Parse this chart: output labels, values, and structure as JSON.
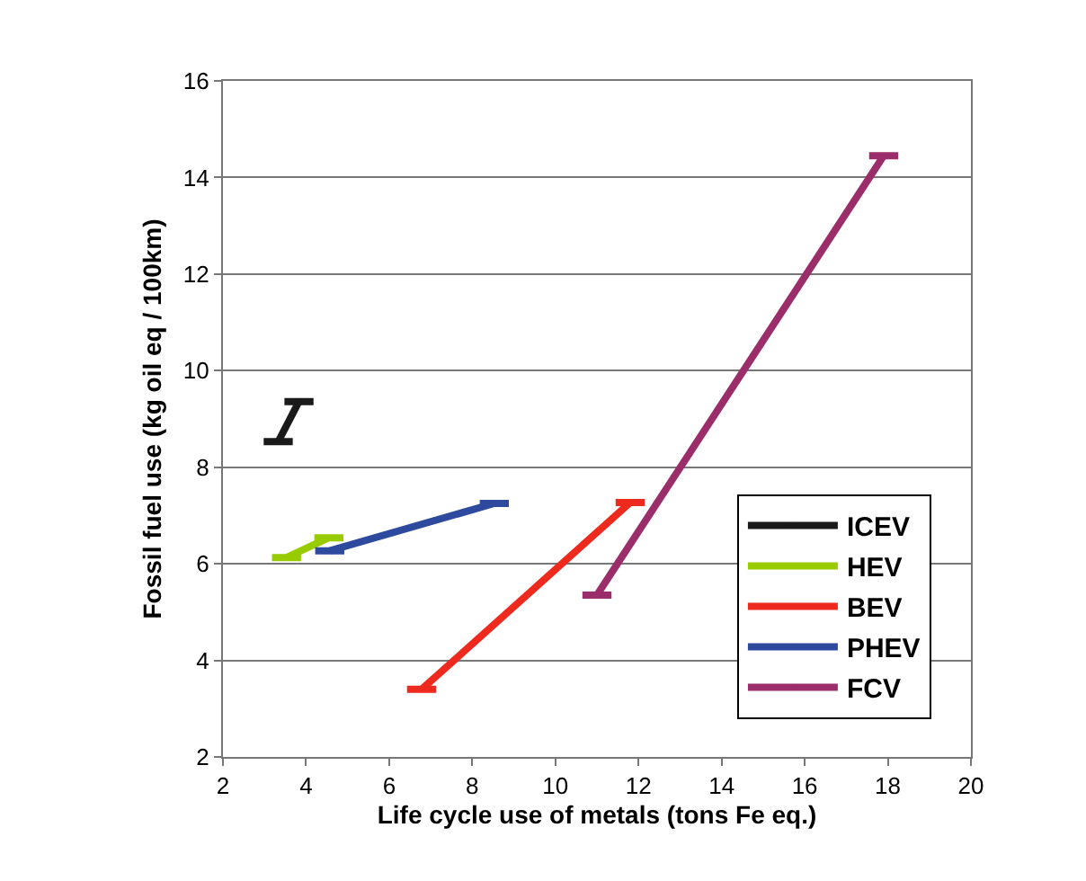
{
  "chart_data": {
    "type": "line",
    "xlabel": "Life cycle use of metals (tons Fe eq.)",
    "ylabel": "Fossil fuel use (kg oil eq / 100km)",
    "series": [
      {
        "name": "ICEV",
        "color": "#1a1a1a",
        "x": [
          3.33,
          3.83
        ],
        "values": [
          8.53,
          9.36
        ],
        "xerrors": [
          0.35,
          0.35
        ]
      },
      {
        "name": "HEV",
        "color": "#99cc00",
        "x": [
          3.53,
          4.55
        ],
        "values": [
          6.13,
          6.54
        ],
        "xerrors": [
          0.35,
          0.35
        ]
      },
      {
        "name": "BEV",
        "color": "#ee2a1e",
        "x": [
          6.78,
          11.8
        ],
        "values": [
          3.4,
          7.27
        ],
        "xerrors": [
          0.35,
          0.35
        ]
      },
      {
        "name": "PHEV",
        "color": "#2e4a9e",
        "x": [
          4.57,
          8.53
        ],
        "values": [
          6.27,
          7.25
        ],
        "xerrors": [
          0.35,
          0.35
        ]
      },
      {
        "name": "FCV",
        "color": "#9b2d6b",
        "x": [
          11.0,
          17.9
        ],
        "values": [
          5.35,
          14.45
        ],
        "xerrors": [
          0.35,
          0.35
        ]
      }
    ],
    "xlim": [
      2,
      20
    ],
    "xticks": [
      2,
      4,
      6,
      8,
      10,
      12,
      14,
      16,
      18,
      20
    ],
    "ylim": [
      2,
      16
    ],
    "yticks": [
      2,
      4,
      6,
      8,
      10,
      12,
      14,
      16
    ],
    "grid": "y",
    "legend": "bottom right"
  }
}
